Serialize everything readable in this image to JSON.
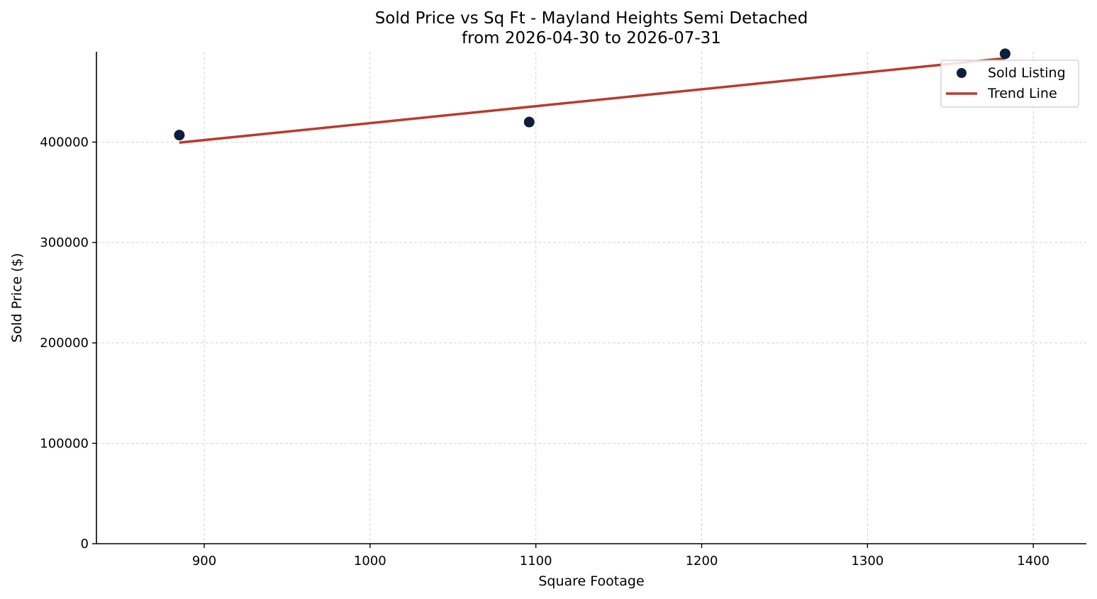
{
  "chart_data": {
    "type": "scatter",
    "title": "Sold Price vs Sq Ft - Mayland Heights Semi Detached",
    "subtitle": "from 2026-04-30 to 2026-07-31",
    "xlabel": "Square Footage",
    "ylabel": "Sold Price ($)",
    "xlim": [
      835,
      1432
    ],
    "ylim": [
      0,
      490000
    ],
    "xticks": [
      900,
      1000,
      1100,
      1200,
      1300,
      1400
    ],
    "xtick_labels": [
      "900",
      "1000",
      "1100",
      "1200",
      "1300",
      "1400"
    ],
    "yticks": [
      0,
      100000,
      200000,
      300000,
      400000
    ],
    "ytick_labels": [
      "0",
      "100000",
      "200000",
      "300000",
      "400000"
    ],
    "grid": true,
    "legend_position": "top-right",
    "series": [
      {
        "name": "Sold Listing",
        "kind": "scatter",
        "color": "#0d1f3c",
        "x": [
          885,
          1096,
          1383
        ],
        "y": [
          407000,
          420000,
          488000
        ]
      },
      {
        "name": "Trend Line",
        "kind": "line",
        "color": "#b83c2e",
        "x": [
          885,
          1383
        ],
        "y": [
          399500,
          483500
        ]
      }
    ]
  }
}
